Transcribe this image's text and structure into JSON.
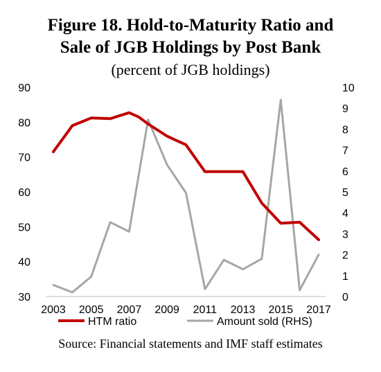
{
  "title_line1": "Figure 18. Hold-to-Maturity Ratio and",
  "title_line2": "Sale of JGB Holdings by Post Bank",
  "subtitle": "(percent of JGB holdings)",
  "source": "Source: Financial statements and IMF staff estimates",
  "colors": {
    "htm": "#c00000",
    "sold": "#a6a6a6"
  },
  "chart_data": {
    "type": "line",
    "x": [
      2003,
      2004,
      2005,
      2006,
      2007,
      2008,
      2009,
      2010,
      2011,
      2012,
      2013,
      2014,
      2015,
      2016,
      2017
    ],
    "x_tick_labels": [
      "2003",
      "2005",
      "2007",
      "2009",
      "2011",
      "2013",
      "2015",
      "2017"
    ],
    "y_left_ticks": [
      "30",
      "40",
      "50",
      "60",
      "70",
      "80",
      "90"
    ],
    "y_right_ticks": [
      "0",
      "1",
      "2",
      "3",
      "4",
      "5",
      "6",
      "7",
      "8",
      "9",
      "10"
    ],
    "ylim_left": [
      30,
      90
    ],
    "ylim_right": [
      0,
      10
    ],
    "grid": false,
    "legend_position": "bottom",
    "series": [
      {
        "name": "HTM ratio",
        "axis": "left",
        "x": [
          2003,
          2004,
          2005,
          2006,
          2007,
          2007.5,
          2008,
          2009,
          2010,
          2011,
          2012,
          2013,
          2014,
          2015,
          2016,
          2017
        ],
        "values": [
          71.5,
          79,
          81.2,
          81,
          82.7,
          81.5,
          79.5,
          76,
          73.5,
          65.8,
          65.8,
          65.8,
          56.8,
          51,
          51.3,
          46.3
        ]
      },
      {
        "name": "Amount sold (RHS)",
        "axis": "right",
        "x": [
          2003,
          2004,
          2005,
          2006,
          2007,
          2008,
          2009,
          2010,
          2011,
          2012,
          2013,
          2014,
          2015,
          2016,
          2017
        ],
        "values": [
          0.55,
          0.2,
          0.95,
          3.55,
          3.1,
          8.45,
          6.3,
          4.95,
          0.35,
          1.75,
          1.3,
          1.8,
          9.4,
          0.3,
          2.0
        ]
      }
    ]
  }
}
